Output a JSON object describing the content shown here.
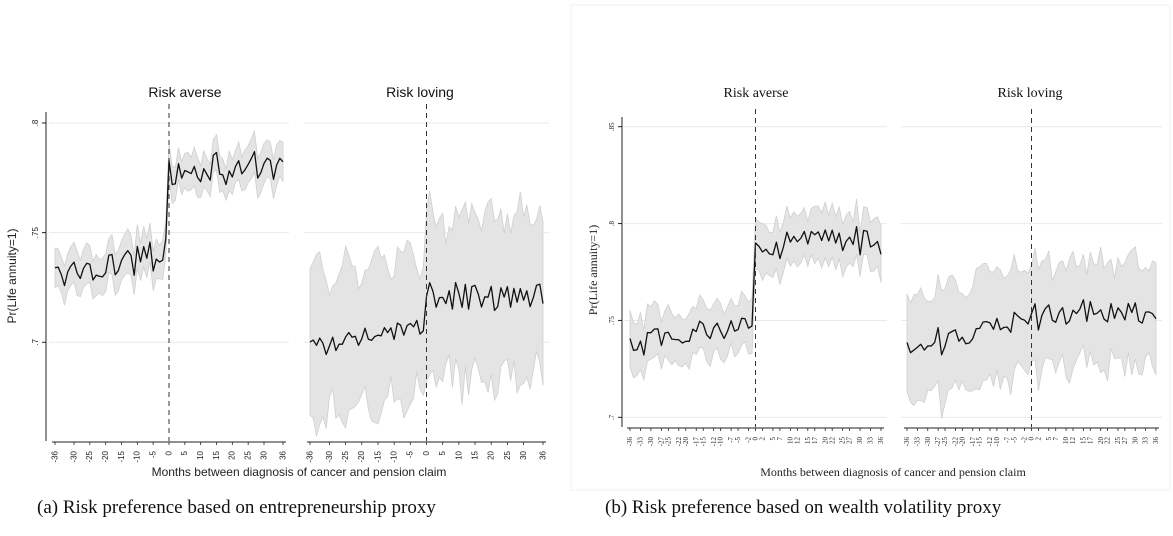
{
  "captions": {
    "a": "(a) Risk preference based on entrepreneurship proxy",
    "b": "(b) Risk preference based on wealth volatility proxy"
  },
  "colors": {
    "line": "#111111",
    "band": "#e4e4e4",
    "band_edge": "#cfcfcf",
    "grid": "#e9e9e9",
    "vline": "#333333"
  },
  "chart_data": [
    {
      "type": "line",
      "id": "a",
      "ylabel": "Pr(Life annuity=1)",
      "xlabel": "Months between diagnosis of cancer and pension claim",
      "ylim": [
        0.655,
        0.805
      ],
      "yticks": [
        0.7,
        0.75,
        0.8
      ],
      "ytick_labels": [
        ".7",
        ".75",
        ".8"
      ],
      "xlim": [
        -36,
        36
      ],
      "xticks": [
        -36,
        -30,
        -25,
        -20,
        -15,
        -10,
        -5,
        0,
        5,
        10,
        15,
        20,
        25,
        30,
        36
      ],
      "xtick_labels": [
        "-36",
        "-30",
        "-25",
        "-20",
        "-15",
        "-10",
        "-5",
        "0",
        "5",
        "10",
        "15",
        "20",
        "25",
        "30",
        "36"
      ],
      "grid": true,
      "vline_x": 0,
      "panels": [
        {
          "name": "Risk averse",
          "pre": {
            "y0": 0.73,
            "y1": 0.741,
            "noise": 0.0055,
            "band": 0.0075,
            "band_growth": 0.0
          },
          "post": {
            "y0": 0.778,
            "y1": 0.78,
            "noise": 0.0055,
            "band": 0.007,
            "band_growth": 0.0
          }
        },
        {
          "name": "Risk loving",
          "pre": {
            "y0": 0.697,
            "y1": 0.709,
            "noise": 0.0055,
            "band": 0.022,
            "band_growth": 0.012
          },
          "post": {
            "y0": 0.72,
            "y1": 0.722,
            "noise": 0.0055,
            "band": 0.026,
            "band_growth": 0.01
          }
        }
      ]
    },
    {
      "type": "line",
      "id": "b",
      "ylabel": "Pr(Life annuity=1)",
      "xlabel": "Months between diagnosis of cancer and pension claim",
      "ylim": [
        0.695,
        0.855
      ],
      "yticks": [
        0.7,
        0.75,
        0.8,
        0.85
      ],
      "ytick_labels": [
        ".7",
        ".75",
        ".8",
        ".85"
      ],
      "xlim": [
        -36,
        36
      ],
      "xticks": [
        -36,
        -33,
        -30,
        -27,
        -25,
        -22,
        -20,
        -17,
        -15,
        -12,
        -10,
        -7,
        -5,
        -2,
        0,
        2,
        5,
        7,
        10,
        12,
        15,
        17,
        20,
        22,
        25,
        27,
        30,
        33,
        36
      ],
      "xtick_labels": [
        "-36",
        "-33",
        "-30",
        "-27",
        "-25",
        "-22",
        "-20",
        "-17",
        "-15",
        "-12",
        "-10",
        "-7",
        "-5",
        "-2",
        "0",
        "2",
        "5",
        "7",
        "10",
        "12",
        "15",
        "17",
        "20",
        "22",
        "25",
        "27",
        "30",
        "33",
        "36"
      ],
      "grid": true,
      "vline_x": 0,
      "panels": [
        {
          "name": "Risk averse",
          "pre": {
            "y0": 0.737,
            "y1": 0.748,
            "noise": 0.006,
            "band": 0.011,
            "band_growth": 0.0
          },
          "post": {
            "y0": 0.79,
            "y1": 0.792,
            "noise": 0.006,
            "band": 0.011,
            "band_growth": 0.0
          }
        },
        {
          "name": "Risk loving",
          "pre": {
            "y0": 0.736,
            "y1": 0.748,
            "noise": 0.006,
            "band": 0.022,
            "band_growth": 0.004
          },
          "post": {
            "y0": 0.752,
            "y1": 0.754,
            "noise": 0.006,
            "band": 0.02,
            "band_growth": 0.006
          }
        }
      ]
    }
  ]
}
